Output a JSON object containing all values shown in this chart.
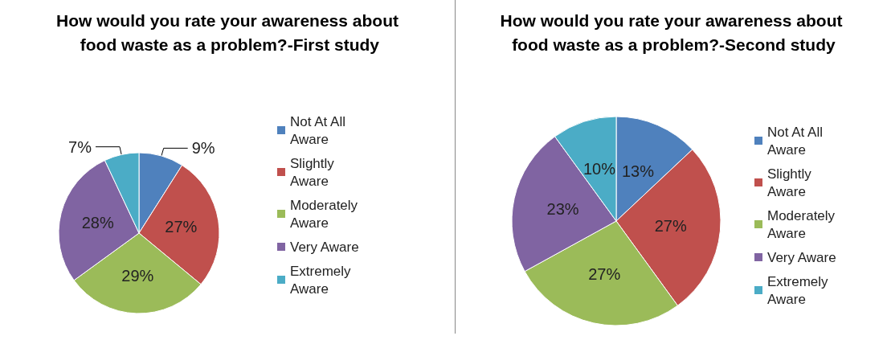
{
  "chart_data": [
    {
      "type": "pie",
      "title": "How would you rate your awareness about food waste as a problem?-First study",
      "categories": [
        "Not At All Aware",
        "Slightly Aware",
        "Moderately Aware",
        "Very Aware",
        "Extremely Aware"
      ],
      "values": [
        9,
        27,
        29,
        28,
        7
      ],
      "value_labels": [
        "9%",
        "27%",
        "29%",
        "28%",
        "7%"
      ],
      "colors": [
        "#4f81bd",
        "#c0504d",
        "#9bbb59",
        "#8064a2",
        "#4bacc6"
      ],
      "legend": "right"
    },
    {
      "type": "pie",
      "title": "How would you rate your awareness about food waste as a problem?-Second study",
      "categories": [
        "Not At All Aware",
        "Slightly Aware",
        "Moderately Aware",
        "Very Aware",
        "Extremely Aware"
      ],
      "values": [
        13,
        27,
        27,
        23,
        10
      ],
      "value_labels": [
        "13%",
        "27%",
        "27%",
        "23%",
        "10%"
      ],
      "colors": [
        "#4f81bd",
        "#c0504d",
        "#9bbb59",
        "#8064a2",
        "#4bacc6"
      ],
      "legend": "right"
    }
  ]
}
